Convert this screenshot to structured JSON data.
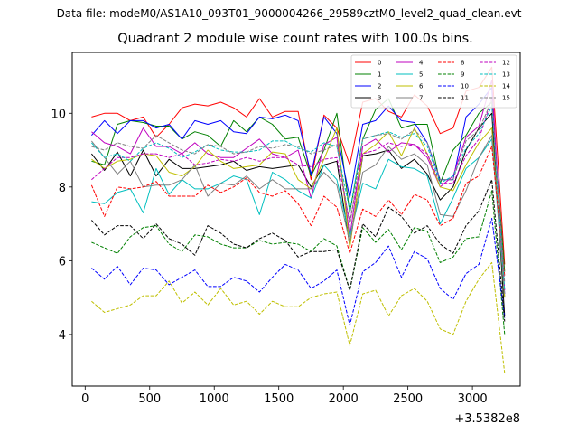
{
  "chart_data": {
    "type": "line",
    "suptitle": "Data file: modeM0/AS1A10_093T01_9000004266_29589cztM0_level2_quad_clean.evt",
    "title": "Quadrant 2 module wise count rates with 100.0s bins.",
    "xlabel": "",
    "ylabel": "",
    "x_offset_label": "+3.5382e8",
    "xlim": [
      -100,
      3370
    ],
    "ylim": [
      2.6,
      11.65
    ],
    "xticks": [
      0,
      500,
      1000,
      1500,
      2000,
      2500,
      3000
    ],
    "xtick_labels": [
      "0",
      "500",
      "1000",
      "1500",
      "2000",
      "2500",
      "3000"
    ],
    "yticks": [
      4,
      6,
      8,
      10
    ],
    "ytick_labels": [
      "4",
      "6",
      "8",
      "10"
    ],
    "x": [
      50,
      150,
      250,
      350,
      450,
      550,
      650,
      750,
      850,
      950,
      1050,
      1150,
      1250,
      1350,
      1450,
      1550,
      1650,
      1750,
      1850,
      1950,
      2050,
      2150,
      2250,
      2350,
      2450,
      2550,
      2650,
      2750,
      2850,
      2950,
      3050,
      3150,
      3250
    ],
    "legend_location": "upper right",
    "series": [
      {
        "name": "0",
        "color": "#ff0000",
        "style": "solid",
        "values": [
          9.9,
          10.0,
          10.0,
          9.8,
          9.9,
          9.35,
          9.7,
          10.15,
          10.25,
          10.2,
          10.3,
          10.15,
          9.9,
          10.4,
          9.9,
          10.05,
          10.05,
          8.2,
          9.95,
          9.6,
          8.6,
          10.3,
          10.4,
          10.05,
          9.9,
          10.5,
          10.2,
          9.45,
          9.6,
          10.6,
          10.7,
          11.25,
          5.9
        ]
      },
      {
        "name": "1",
        "color": "#008000",
        "style": "solid",
        "values": [
          8.7,
          8.6,
          9.7,
          9.8,
          9.75,
          9.65,
          9.65,
          9.3,
          9.5,
          9.4,
          9.1,
          9.8,
          9.5,
          9.9,
          9.7,
          9.3,
          9.35,
          8.3,
          9.0,
          10.0,
          7.3,
          9.3,
          10.1,
          10.4,
          9.6,
          9.7,
          9.7,
          8.1,
          9.0,
          9.4,
          10.0,
          10.3,
          5.7
        ]
      },
      {
        "name": "2",
        "color": "#0000ff",
        "style": "solid",
        "values": [
          9.4,
          9.8,
          9.45,
          9.8,
          9.8,
          9.6,
          9.7,
          9.3,
          9.8,
          9.7,
          9.8,
          9.5,
          9.45,
          9.9,
          9.85,
          9.95,
          9.8,
          8.35,
          9.9,
          9.45,
          7.7,
          9.7,
          9.8,
          10.2,
          9.8,
          9.75,
          9.2,
          8.2,
          8.2,
          9.9,
          10.25,
          10.7,
          5.1
        ]
      },
      {
        "name": "3",
        "color": "#000000",
        "style": "solid",
        "values": [
          8.9,
          8.45,
          8.95,
          8.3,
          9.0,
          8.3,
          8.75,
          8.5,
          8.5,
          8.55,
          8.6,
          8.7,
          8.45,
          8.55,
          8.5,
          8.55,
          8.6,
          8.0,
          8.6,
          8.7,
          6.4,
          8.85,
          8.9,
          9.0,
          8.5,
          8.75,
          8.35,
          7.65,
          8.0,
          9.0,
          9.6,
          10.0,
          4.5
        ]
      },
      {
        "name": "4",
        "color": "#bf00bf",
        "style": "solid",
        "values": [
          9.5,
          9.2,
          9.1,
          8.9,
          9.6,
          9.1,
          9.1,
          8.9,
          9.2,
          8.9,
          8.8,
          8.8,
          9.05,
          9.3,
          8.9,
          8.8,
          9.0,
          7.7,
          9.15,
          9.35,
          6.65,
          9.1,
          9.3,
          8.95,
          9.2,
          9.15,
          8.8,
          8.0,
          8.3,
          9.35,
          9.65,
          10.9,
          5.0
        ]
      },
      {
        "name": "5",
        "color": "#00bfbf",
        "style": "solid",
        "values": [
          7.6,
          7.55,
          7.85,
          7.95,
          7.3,
          8.5,
          7.8,
          8.2,
          7.95,
          7.95,
          8.1,
          8.3,
          8.2,
          7.25,
          8.4,
          8.2,
          7.9,
          7.7,
          8.6,
          8.2,
          6.65,
          8.1,
          7.95,
          8.75,
          8.55,
          8.5,
          8.3,
          7.0,
          7.7,
          8.5,
          8.8,
          9.3,
          5.0
        ]
      },
      {
        "name": "6",
        "color": "#bfbf00",
        "style": "solid",
        "values": [
          8.75,
          8.5,
          8.7,
          8.75,
          8.9,
          8.85,
          8.4,
          8.3,
          8.55,
          9.0,
          8.7,
          8.5,
          8.55,
          8.6,
          8.95,
          8.9,
          8.2,
          7.95,
          8.75,
          9.6,
          6.35,
          8.9,
          9.15,
          9.5,
          8.85,
          9.6,
          8.9,
          8.0,
          7.9,
          8.6,
          9.2,
          9.6,
          5.0
        ]
      },
      {
        "name": "7",
        "color": "#808080",
        "style": "solid",
        "values": [
          9.25,
          8.8,
          8.35,
          8.7,
          8.0,
          8.05,
          8.05,
          8.2,
          8.6,
          7.75,
          8.1,
          8.05,
          8.3,
          7.95,
          8.2,
          7.95,
          7.95,
          7.95,
          8.4,
          8.05,
          6.5,
          8.4,
          8.6,
          9.1,
          8.75,
          8.9,
          8.6,
          7.25,
          7.2,
          7.9,
          8.8,
          9.4,
          5.1
        ]
      },
      {
        "name": "8",
        "color": "#ff0000",
        "style": "dashed",
        "values": [
          8.05,
          7.2,
          8.0,
          7.95,
          8.0,
          8.15,
          7.75,
          7.75,
          7.75,
          8.05,
          7.85,
          8.0,
          8.25,
          7.85,
          7.75,
          7.9,
          7.55,
          6.95,
          7.75,
          7.45,
          6.2,
          7.4,
          7.2,
          7.65,
          7.25,
          7.8,
          7.65,
          6.95,
          7.15,
          8.1,
          8.3,
          9.1,
          5.6
        ]
      },
      {
        "name": "9",
        "color": "#008000",
        "style": "dashed",
        "values": [
          6.5,
          6.35,
          6.2,
          6.65,
          6.9,
          6.95,
          6.45,
          6.25,
          6.7,
          6.65,
          6.45,
          6.35,
          6.35,
          6.55,
          6.45,
          6.5,
          6.45,
          6.25,
          6.6,
          6.4,
          5.2,
          6.9,
          6.5,
          6.85,
          6.3,
          6.9,
          6.8,
          5.95,
          6.1,
          6.6,
          6.65,
          7.9,
          4.0
        ]
      },
      {
        "name": "10",
        "color": "#0000ff",
        "style": "dashed",
        "values": [
          5.8,
          5.5,
          5.85,
          5.35,
          5.8,
          5.75,
          5.35,
          5.55,
          5.75,
          5.3,
          5.3,
          5.55,
          5.45,
          5.15,
          5.55,
          5.9,
          5.75,
          5.25,
          5.45,
          5.75,
          4.25,
          5.7,
          5.95,
          6.4,
          5.55,
          6.25,
          6.05,
          5.25,
          4.95,
          5.65,
          5.9,
          7.15,
          4.45
        ]
      },
      {
        "name": "11",
        "color": "#000000",
        "style": "dashed",
        "values": [
          7.1,
          6.7,
          6.95,
          6.95,
          6.6,
          7.0,
          6.6,
          6.45,
          6.15,
          6.95,
          6.75,
          6.45,
          6.35,
          6.6,
          6.75,
          6.55,
          6.1,
          6.25,
          6.25,
          6.3,
          5.2,
          7.0,
          6.65,
          7.45,
          7.2,
          6.75,
          6.95,
          6.45,
          6.2,
          6.95,
          7.35,
          8.2,
          4.35
        ]
      },
      {
        "name": "12",
        "color": "#bf00bf",
        "style": "dashed",
        "values": [
          8.2,
          8.5,
          8.8,
          8.8,
          8.9,
          8.9,
          8.8,
          8.9,
          8.6,
          8.65,
          8.75,
          8.7,
          8.8,
          8.7,
          8.8,
          8.8,
          8.6,
          8.55,
          8.75,
          8.8,
          7.05,
          8.9,
          9.0,
          9.2,
          9.1,
          9.15,
          8.9,
          8.1,
          8.1,
          8.85,
          9.3,
          10.4,
          5.2
        ]
      },
      {
        "name": "13",
        "color": "#00bfbf",
        "style": "dashed",
        "values": [
          9.2,
          8.8,
          8.9,
          8.7,
          9.05,
          9.2,
          9.05,
          8.8,
          8.95,
          9.15,
          9.0,
          8.95,
          8.95,
          9.0,
          9.25,
          9.25,
          9.05,
          8.95,
          9.2,
          9.1,
          7.35,
          9.3,
          9.4,
          9.5,
          9.35,
          9.45,
          9.1,
          8.1,
          8.3,
          9.05,
          9.45,
          10.2,
          5.2
        ]
      },
      {
        "name": "14",
        "color": "#bfbf00",
        "style": "dashed",
        "values": [
          4.9,
          4.6,
          4.7,
          4.8,
          5.05,
          5.05,
          5.45,
          4.85,
          5.15,
          4.8,
          5.25,
          4.8,
          4.9,
          4.55,
          4.9,
          4.75,
          4.75,
          5.0,
          5.1,
          5.15,
          3.7,
          5.1,
          5.2,
          4.5,
          5.05,
          5.25,
          4.9,
          4.15,
          4.0,
          4.9,
          5.5,
          5.95,
          2.95
        ]
      },
      {
        "name": "15",
        "color": "#808080",
        "style": "dashed",
        "values": [
          9.1,
          9.0,
          9.2,
          9.1,
          9.05,
          9.4,
          9.2,
          9.0,
          8.9,
          9.15,
          9.1,
          8.9,
          8.95,
          9.1,
          9.05,
          9.15,
          9.1,
          8.9,
          9.0,
          9.15,
          6.95,
          9.3,
          9.4,
          9.45,
          9.3,
          9.55,
          9.2,
          8.2,
          8.2,
          9.25,
          9.55,
          10.35,
          5.4
        ]
      }
    ]
  }
}
